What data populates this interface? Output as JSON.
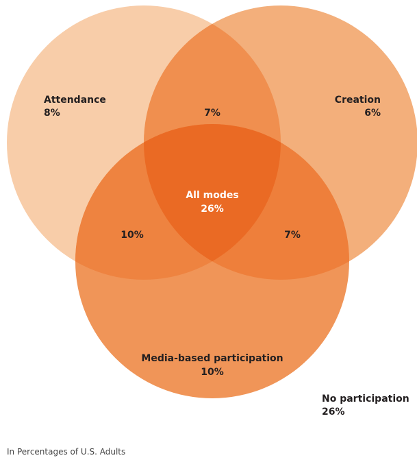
{
  "regions": {
    "attendance": {
      "label": "Attendance",
      "value": "8%"
    },
    "creation": {
      "label": "Creation",
      "value": "6%"
    },
    "media": {
      "label": "Media-based participation",
      "value": "10%"
    },
    "attendance_creation": {
      "value": "7%"
    },
    "attendance_media": {
      "value": "10%"
    },
    "creation_media": {
      "value": "7%"
    },
    "all": {
      "label": "All modes",
      "value": "26%"
    }
  },
  "outside": {
    "label": "No participation",
    "value": "26%"
  },
  "caption": "In Percentages of U.S. Adults",
  "colors": {
    "attendance": "#f8cda9",
    "creation": "#f3af7b",
    "media": "#f09558",
    "attendance_creation": "#f08f4f",
    "attendance_media": "#ee8340",
    "creation_media": "#ee7f3b",
    "all": "#ea6a24"
  }
}
